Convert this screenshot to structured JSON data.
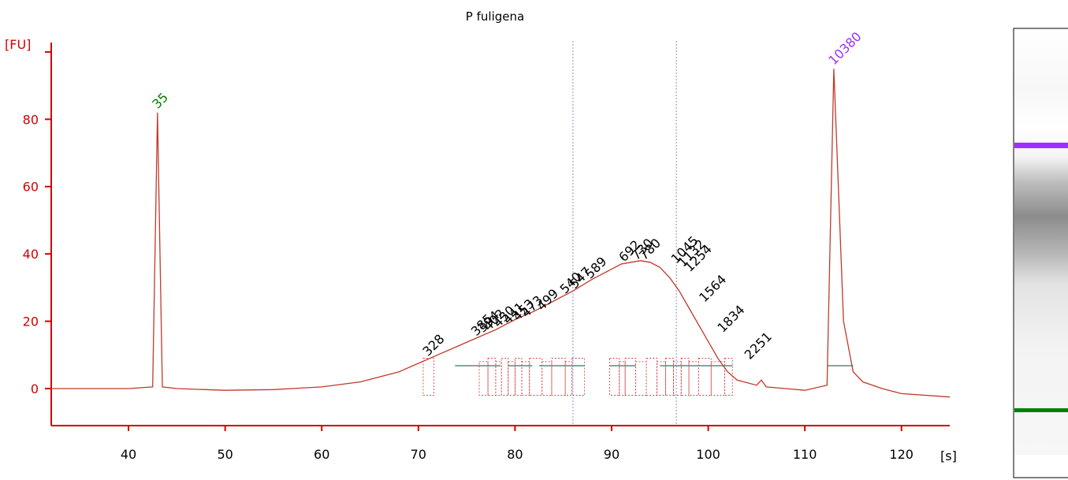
{
  "chart_data": {
    "type": "line",
    "title": "P fuligena",
    "ylabel": "[FU]",
    "xlabel": "[s]",
    "xlim": [
      32,
      125
    ],
    "ylim": [
      -11,
      107
    ],
    "x_ticks": [
      40,
      50,
      60,
      70,
      80,
      90,
      100,
      110,
      120
    ],
    "y_ticks": [
      0,
      20,
      40,
      60,
      80
    ],
    "colors": {
      "axis": "#d40000",
      "trace": "#c0392b",
      "peak_regions": "#d32f2f",
      "baselines": "#4f8f7f",
      "markers": "#8e8ec8",
      "lower_marker": "#008000",
      "upper_marker": "#9b30ff"
    },
    "series": [
      {
        "x": [
          32,
          40,
          42.5,
          43.0,
          43.5,
          45,
          50,
          55,
          60,
          64,
          68,
          70,
          72,
          74,
          76,
          78,
          80,
          82,
          84,
          86,
          88,
          90,
          91,
          92,
          93,
          94,
          95,
          96,
          97,
          98,
          99,
          100,
          101,
          102,
          103,
          105,
          105.5,
          106,
          108,
          110,
          112.3,
          113.0,
          114.0,
          115,
          116,
          118,
          120,
          125
        ],
        "y": [
          0,
          0,
          0.5,
          82,
          0.5,
          0,
          -0.5,
          -0.3,
          0.5,
          2,
          5,
          7.5,
          10,
          12.5,
          15,
          17.5,
          20.5,
          23,
          26,
          29,
          32.5,
          35.5,
          37,
          37.5,
          38,
          37.5,
          36,
          33,
          29,
          24,
          19,
          14,
          9,
          5,
          2.5,
          1,
          2.5,
          0.5,
          0,
          -0.5,
          1,
          95,
          20,
          5,
          2,
          0,
          -1.5,
          -2.5
        ]
      }
    ],
    "markers": [
      {
        "label": "35",
        "x": 43.0,
        "y": 82,
        "color": "#008000"
      },
      {
        "label": "10380",
        "x": 113.0,
        "y": 95,
        "color": "#9b30ff"
      }
    ],
    "peak_labels": [
      {
        "label": "328",
        "x": 71.0,
        "y": 9
      },
      {
        "label": "385",
        "x": 76.0,
        "y": 15
      },
      {
        "label": "394",
        "x": 76.7,
        "y": 16
      },
      {
        "label": "402",
        "x": 77.3,
        "y": 16.5
      },
      {
        "label": "430",
        "x": 78.3,
        "y": 17.5
      },
      {
        "label": "441",
        "x": 79.3,
        "y": 18.5
      },
      {
        "label": "453",
        "x": 80.3,
        "y": 19.5
      },
      {
        "label": "473",
        "x": 81.2,
        "y": 20.5
      },
      {
        "label": "499",
        "x": 82.8,
        "y": 22.5
      },
      {
        "label": "540",
        "x": 85.2,
        "y": 27.5
      },
      {
        "label": "547",
        "x": 86.2,
        "y": 29
      },
      {
        "label": "589",
        "x": 87.8,
        "y": 32
      },
      {
        "label": "692",
        "x": 91.3,
        "y": 37
      },
      {
        "label": "730",
        "x": 92.6,
        "y": 37.5
      },
      {
        "label": "780",
        "x": 93.4,
        "y": 37.5
      },
      {
        "label": "1045",
        "x": 96.7,
        "y": 36.5
      },
      {
        "label": "1132",
        "x": 97.4,
        "y": 35.5
      },
      {
        "label": "1254",
        "x": 98.1,
        "y": 34
      },
      {
        "label": "1564",
        "x": 99.6,
        "y": 25
      },
      {
        "label": "1834",
        "x": 101.5,
        "y": 16
      },
      {
        "label": "2251",
        "x": 104.3,
        "y": 8
      }
    ],
    "region_lines": [
      86,
      96.7
    ],
    "gel_bands": [
      "upper_marker",
      "smear",
      "lower_marker"
    ]
  }
}
